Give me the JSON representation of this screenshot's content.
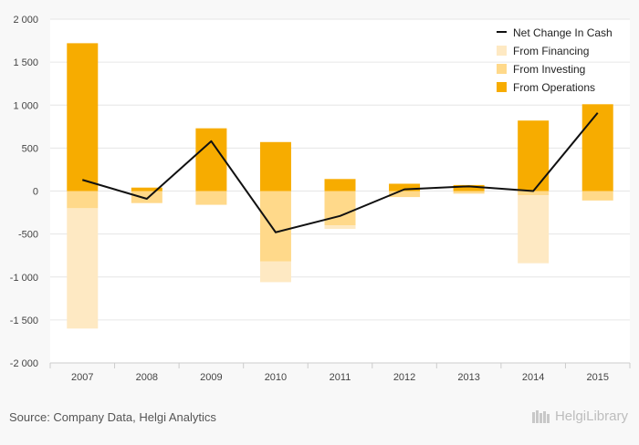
{
  "chart_data": {
    "type": "bar",
    "stacked": true,
    "categories": [
      "2007",
      "2008",
      "2009",
      "2010",
      "2011",
      "2012",
      "2013",
      "2014",
      "2015"
    ],
    "ylim": [
      -2000,
      2000
    ],
    "yticks": [
      -2000,
      -1500,
      -1000,
      -500,
      0,
      500,
      1000,
      1500,
      2000
    ],
    "ytick_labels": [
      "-2 000",
      "-1 500",
      "-1 000",
      "-500",
      "0",
      "500",
      "1 000",
      "1 500",
      "2 000"
    ],
    "grid": true,
    "legend_position": "top-right",
    "series": [
      {
        "name": "From Operations",
        "kind": "bar",
        "color": "#f7ac00",
        "values": [
          1720,
          40,
          730,
          570,
          140,
          85,
          70,
          820,
          1010
        ]
      },
      {
        "name": "From Investing",
        "kind": "bar",
        "color": "#ffd98a",
        "values": [
          -200,
          -140,
          -160,
          -820,
          -400,
          -70,
          -30,
          -50,
          -110
        ]
      },
      {
        "name": "From Financing",
        "kind": "bar",
        "color": "#fee9c3",
        "values": [
          -1400,
          0,
          0,
          -240,
          -40,
          0,
          0,
          -790,
          0
        ]
      },
      {
        "name": "Net Change In Cash",
        "kind": "line",
        "color": "#111111",
        "values": [
          130,
          -90,
          580,
          -480,
          -290,
          20,
          55,
          0,
          910
        ]
      }
    ],
    "legend_order": [
      "Net Change In Cash",
      "From Financing",
      "From Investing",
      "From Operations"
    ]
  },
  "footer": {
    "source": "Source: Company Data, Helgi Analytics",
    "brand": "HelgiLibrary"
  }
}
